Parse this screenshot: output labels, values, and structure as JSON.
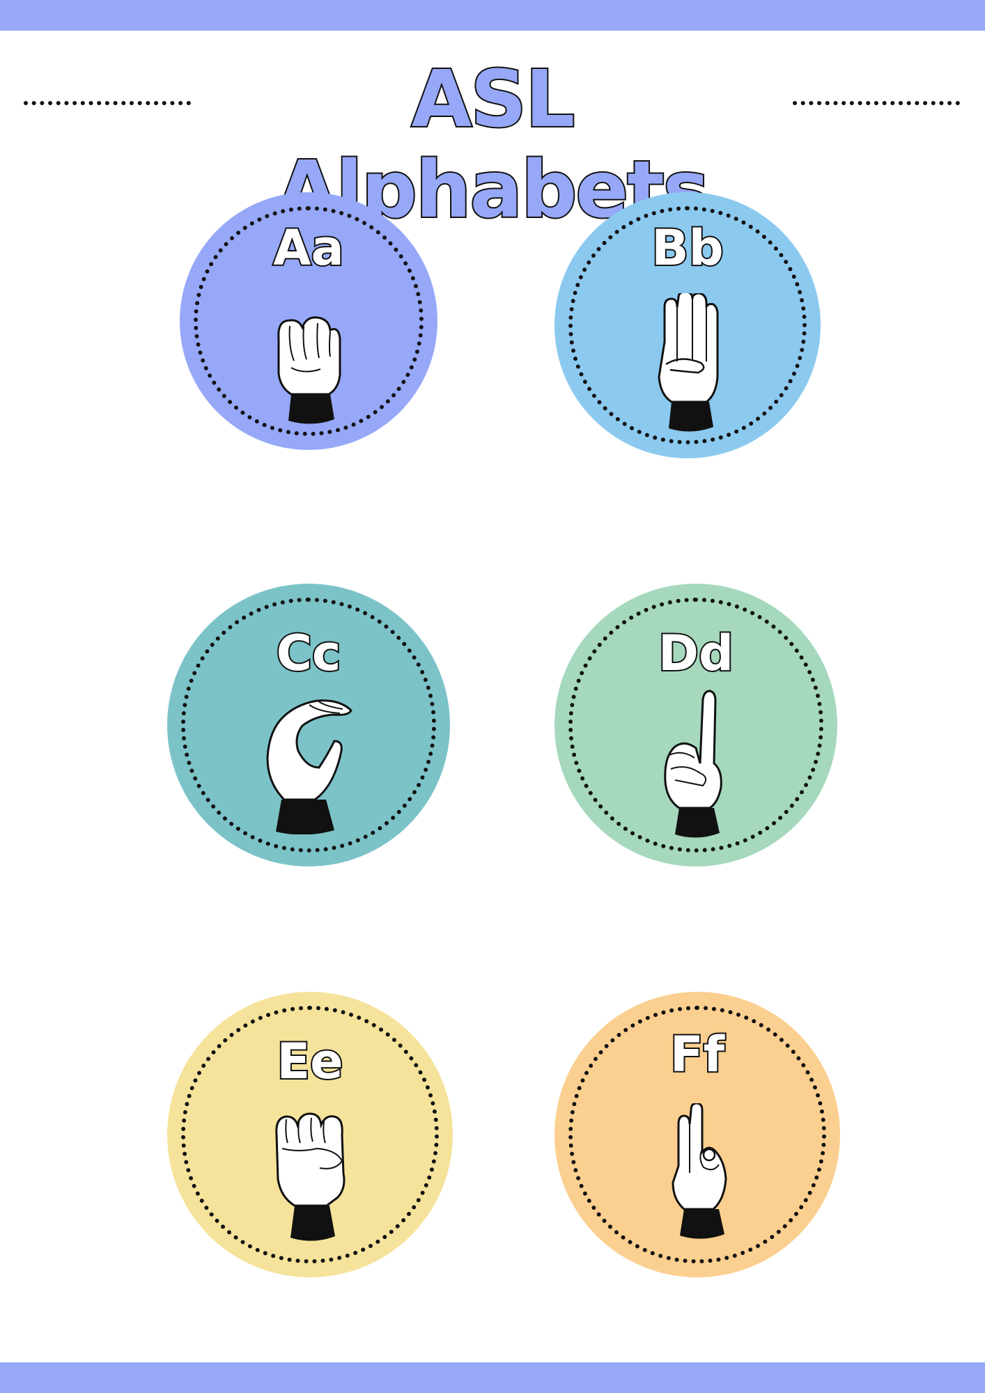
{
  "title": "ASL Alphabets",
  "colors": {
    "band": "#96a8f7",
    "title_fill": "#96a8f7"
  },
  "letters": [
    {
      "label": "Aa",
      "color": "#96a8f7",
      "icon": "asl-a-hand-icon"
    },
    {
      "label": "Bb",
      "color": "#8cc9ef",
      "icon": "asl-b-hand-icon"
    },
    {
      "label": "Cc",
      "color": "#7cc3c8",
      "icon": "asl-c-hand-icon"
    },
    {
      "label": "Dd",
      "color": "#a5d8bd",
      "icon": "asl-d-hand-icon"
    },
    {
      "label": "Ee",
      "color": "#f5e39b",
      "icon": "asl-e-hand-icon"
    },
    {
      "label": "Ff",
      "color": "#fbcf8f",
      "icon": "asl-f-hand-icon"
    }
  ]
}
